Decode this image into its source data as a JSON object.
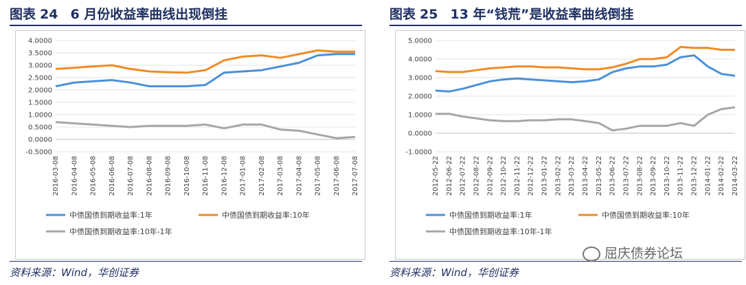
{
  "figures": [
    {
      "label": "图表",
      "number": "24",
      "title": "6 月份收益率曲线出现倒挂",
      "source": "资料来源：Wind，华创证券"
    },
    {
      "label": "图表",
      "number": "25",
      "title": "13 年“钱荒”是收益率曲线倒挂",
      "source": "资料来源：Wind，华创证券"
    }
  ],
  "watermark": "屈庆债券论坛",
  "chart_data": [
    {
      "type": "line",
      "title": "6 月份收益率曲线出现倒挂",
      "ylim": [
        -0.5,
        4.0
      ],
      "ytick_labels": [
        "4.0000",
        "3.5000",
        "3.0000",
        "2.5000",
        "2.0000",
        "1.5000",
        "1.0000",
        "0.5000",
        "0.0000",
        "-0.5000"
      ],
      "x": [
        "2016-03-08",
        "2016-04-08",
        "2016-05-08",
        "2016-06-08",
        "2016-07-08",
        "2016-08-08",
        "2016-09-08",
        "2016-10-08",
        "2016-11-08",
        "2016-12-08",
        "2017-01-08",
        "2017-02-08",
        "2017-03-08",
        "2017-04-08",
        "2017-05-08",
        "2017-06-08",
        "2017-07-08"
      ],
      "grid": true,
      "legend_position": "bottom",
      "series": [
        {
          "name": "中债国债到期收益率:1年",
          "color": "#4a90d9",
          "values": [
            2.15,
            2.3,
            2.35,
            2.4,
            2.3,
            2.15,
            2.15,
            2.15,
            2.2,
            2.7,
            2.75,
            2.8,
            2.95,
            3.1,
            3.4,
            3.45,
            3.45
          ]
        },
        {
          "name": "中债国债到期收益率:10年",
          "color": "#f08a24",
          "values": [
            2.85,
            2.9,
            2.95,
            3.0,
            2.85,
            2.75,
            2.72,
            2.7,
            2.8,
            3.2,
            3.35,
            3.4,
            3.3,
            3.45,
            3.6,
            3.55,
            3.55
          ]
        },
        {
          "name": "中债国债到期收益率:10年-1年",
          "color": "#a6a6a6",
          "values": [
            0.7,
            0.65,
            0.6,
            0.55,
            0.5,
            0.55,
            0.55,
            0.55,
            0.6,
            0.45,
            0.6,
            0.6,
            0.4,
            0.35,
            0.2,
            0.05,
            0.1
          ]
        }
      ]
    },
    {
      "type": "line",
      "title": "13 年“钱荒”是收益率曲线倒挂",
      "ylim": [
        -1.0,
        5.0
      ],
      "ytick_labels": [
        "5.0000",
        "4.0000",
        "3.0000",
        "2.0000",
        "1.0000",
        "0.0000",
        "-1.0000"
      ],
      "x": [
        "2012-05-22",
        "2012-06-22",
        "2012-07-22",
        "2012-08-22",
        "2012-09-22",
        "2012-10-22",
        "2012-11-22",
        "2012-12-22",
        "2013-01-22",
        "2013-02-22",
        "2013-03-22",
        "2013-04-22",
        "2013-05-22",
        "2013-06-22",
        "2013-07-22",
        "2013-08-22",
        "2013-09-22",
        "2013-10-22",
        "2013-11-22",
        "2013-12-22",
        "2014-01-22",
        "2014-02-22",
        "2014-03-22"
      ],
      "grid": true,
      "legend_position": "bottom",
      "series": [
        {
          "name": "中债国债到期收益率:1年",
          "color": "#4a90d9",
          "values": [
            2.3,
            2.25,
            2.4,
            2.6,
            2.8,
            2.9,
            2.95,
            2.9,
            2.85,
            2.8,
            2.75,
            2.8,
            2.9,
            3.3,
            3.5,
            3.6,
            3.6,
            3.7,
            4.1,
            4.2,
            3.6,
            3.2,
            3.1
          ]
        },
        {
          "name": "中债国债到期收益率:10年",
          "color": "#f08a24",
          "values": [
            3.35,
            3.3,
            3.3,
            3.4,
            3.5,
            3.55,
            3.6,
            3.6,
            3.55,
            3.55,
            3.5,
            3.45,
            3.45,
            3.55,
            3.75,
            4.0,
            4.0,
            4.1,
            4.65,
            4.6,
            4.6,
            4.5,
            4.5
          ]
        },
        {
          "name": "中债国债到期收益率:10年-1年",
          "color": "#a6a6a6",
          "values": [
            1.05,
            1.05,
            0.9,
            0.8,
            0.7,
            0.65,
            0.65,
            0.7,
            0.7,
            0.75,
            0.75,
            0.65,
            0.55,
            0.15,
            0.25,
            0.4,
            0.4,
            0.4,
            0.55,
            0.4,
            1.0,
            1.3,
            1.4
          ]
        }
      ]
    }
  ]
}
